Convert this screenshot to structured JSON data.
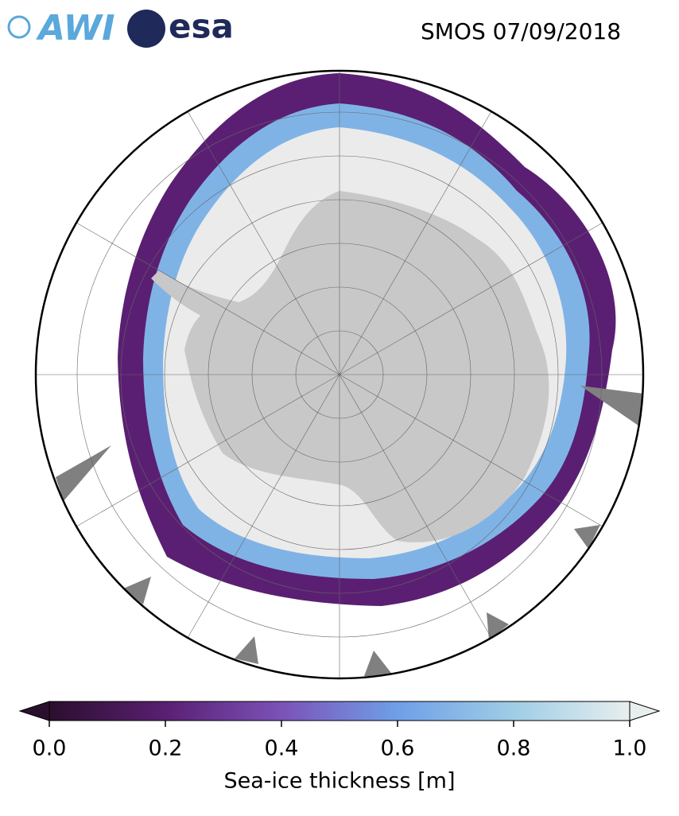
{
  "header": {
    "logos": [
      "AWI",
      "esa"
    ],
    "title": "SMOS 07/09/2018"
  },
  "colorbar": {
    "label": "Sea-ice thickness [m]",
    "lim": [
      0,
      1
    ],
    "ticks": [
      {
        "value": 0,
        "label": "0.0"
      },
      0.2,
      0.4,
      0.6,
      0.8,
      {
        "value": 1,
        "label": "1.0"
      }
    ],
    "colors": [
      "#2b0f2e",
      "#5a1f72",
      "#7b52b8",
      "#6f9fe8",
      "#9fcde6",
      "#e8eeee"
    ]
  }
}
